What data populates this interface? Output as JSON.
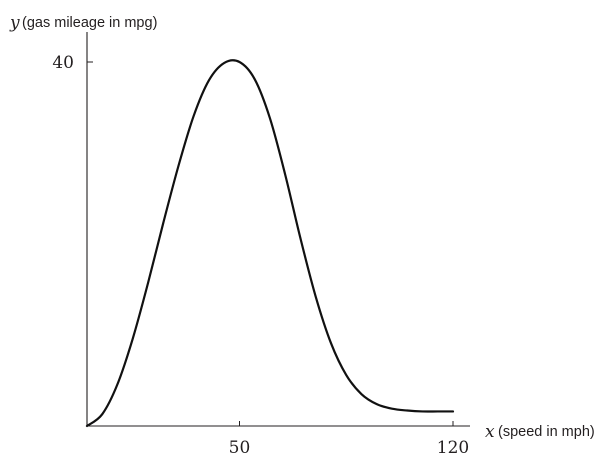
{
  "chart_data": {
    "type": "line",
    "title": "",
    "x_var": "x",
    "xlabel": "(speed in mph)",
    "y_var": "y",
    "ylabel": "(gas mileage in mpg)",
    "xlim": [
      0,
      125
    ],
    "ylim": [
      0,
      42
    ],
    "x_ticks": [
      {
        "value": 50,
        "label": "50"
      },
      {
        "value": 120,
        "label": "120"
      }
    ],
    "y_ticks": [
      {
        "value": 40,
        "label": "40"
      }
    ],
    "grid": false,
    "legend": "none",
    "series": [
      {
        "color": "#111111",
        "x": [
          0,
          5,
          10,
          15,
          20,
          25,
          30,
          35,
          40,
          45,
          50,
          55,
          60,
          65,
          70,
          75,
          80,
          85,
          90,
          95,
          100,
          105,
          110,
          115,
          120
        ],
        "y": [
          0,
          1.3,
          4.6,
          9.6,
          15.7,
          22.3,
          28.6,
          34.1,
          38.0,
          39.9,
          40.0,
          38.1,
          33.8,
          27.6,
          20.6,
          14.2,
          9.1,
          5.6,
          3.5,
          2.4,
          1.9,
          1.7,
          1.6,
          1.6,
          1.6
        ]
      }
    ]
  }
}
